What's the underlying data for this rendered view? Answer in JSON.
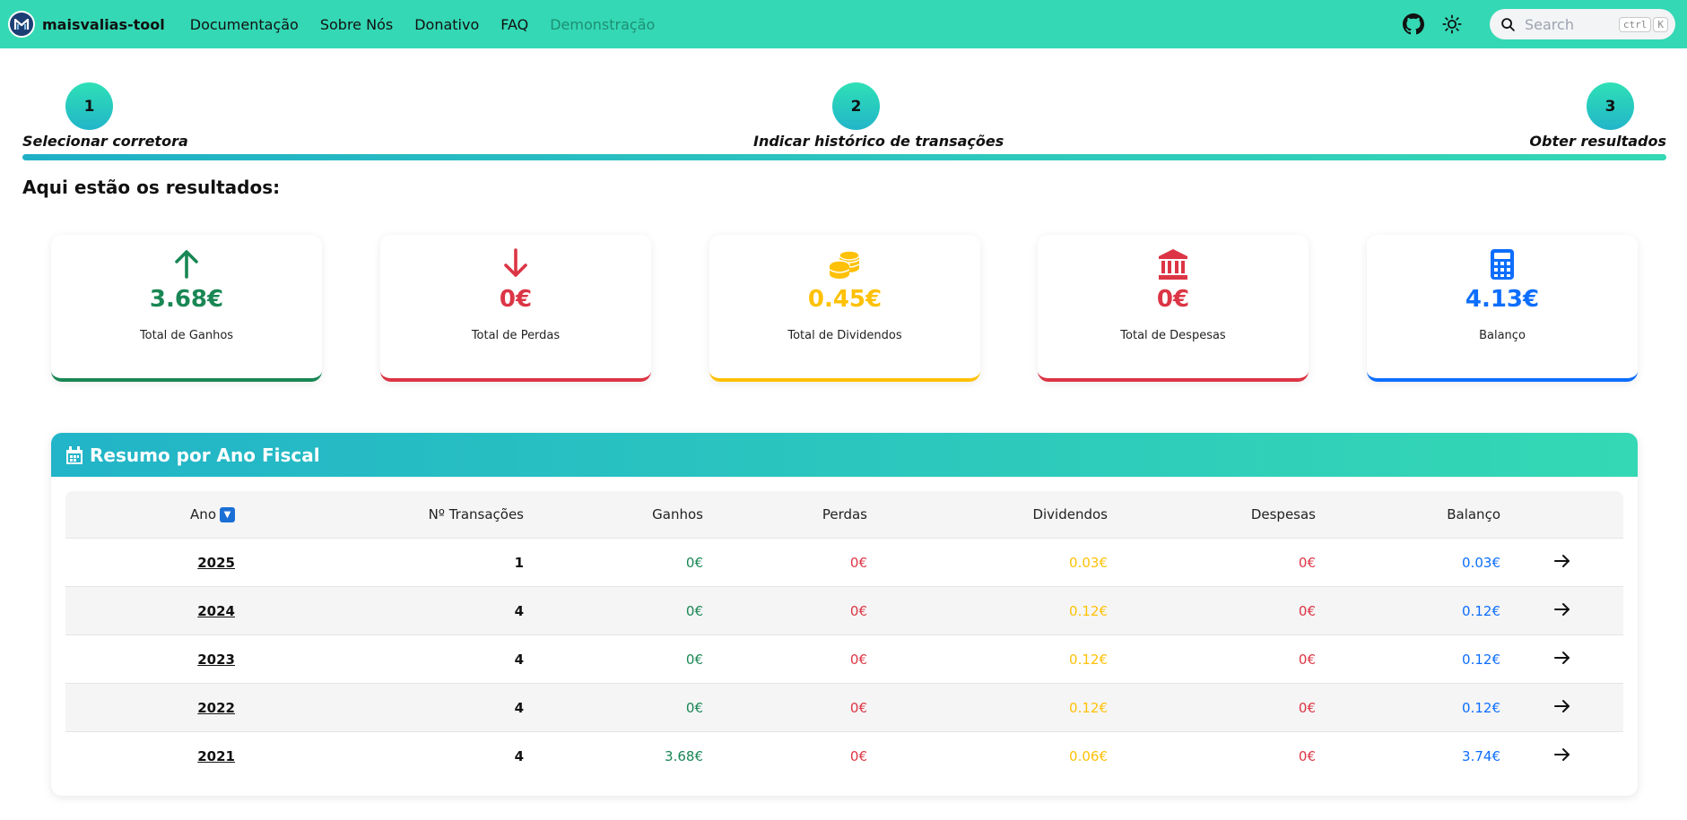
{
  "navbar": {
    "brand": "maisvalias-tool",
    "links": [
      "Documentação",
      "Sobre Nós",
      "Donativo",
      "FAQ",
      "Demonstração"
    ],
    "search_placeholder": "Search",
    "search_kbd": [
      "ctrl",
      "K"
    ]
  },
  "stepper": {
    "steps": [
      {
        "number": "1",
        "label": "Selecionar corretora"
      },
      {
        "number": "2",
        "label": "Indicar histórico de transações"
      },
      {
        "number": "3",
        "label": "Obter resultados"
      }
    ]
  },
  "results_title": "Aqui estão os resultados:",
  "cards": [
    {
      "value": "3.68€",
      "label": "Total de Ganhos",
      "color": "#198754",
      "icon": "arrow-up-icon"
    },
    {
      "value": "0€",
      "label": "Total de Perdas",
      "color": "#dc3545",
      "icon": "arrow-down-icon"
    },
    {
      "value": "0.45€",
      "label": "Total de Dividendos",
      "color": "#ffc107",
      "icon": "coins-icon"
    },
    {
      "value": "0€",
      "label": "Total de Despesas",
      "color": "#dc3545",
      "icon": "bank-icon"
    },
    {
      "value": "4.13€",
      "label": "Balanço",
      "color": "#0d6efd",
      "icon": "calculator-icon"
    }
  ],
  "fiscal": {
    "title": "Resumo por Ano Fiscal",
    "columns": [
      "Ano",
      "Nº Transações",
      "Ganhos",
      "Perdas",
      "Dividendos",
      "Despesas",
      "Balanço"
    ],
    "rows": [
      {
        "ano": "2025",
        "transacoes": "1",
        "ganhos": "0€",
        "perdas": "0€",
        "dividendos": "0.03€",
        "despesas": "0€",
        "balanco": "0.03€"
      },
      {
        "ano": "2024",
        "transacoes": "4",
        "ganhos": "0€",
        "perdas": "0€",
        "dividendos": "0.12€",
        "despesas": "0€",
        "balanco": "0.12€"
      },
      {
        "ano": "2023",
        "transacoes": "4",
        "ganhos": "0€",
        "perdas": "0€",
        "dividendos": "0.12€",
        "despesas": "0€",
        "balanco": "0.12€"
      },
      {
        "ano": "2022",
        "transacoes": "4",
        "ganhos": "0€",
        "perdas": "0€",
        "dividendos": "0.12€",
        "despesas": "0€",
        "balanco": "0.12€"
      },
      {
        "ano": "2021",
        "transacoes": "4",
        "ganhos": "3.68€",
        "perdas": "0€",
        "dividendos": "0.06€",
        "despesas": "0€",
        "balanco": "3.74€"
      }
    ]
  },
  "colors": {
    "navbar": "#34d8b4",
    "gain": "#198754",
    "loss": "#dc3545",
    "dividend": "#ffc107",
    "balance": "#0d6efd"
  }
}
